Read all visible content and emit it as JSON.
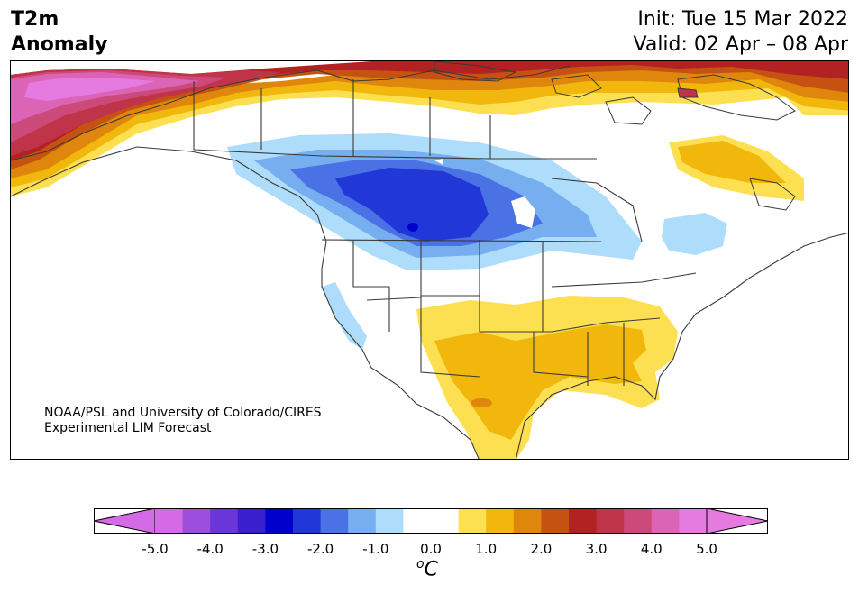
{
  "title": {
    "variable_line1": "T2m",
    "variable_line2": "Anomaly",
    "init": "Init: Tue 15 Mar 2022",
    "valid": "Valid: 02 Apr – 08 Apr"
  },
  "credit": {
    "line1": "NOAA/PSL and University of Colorado/CIRES",
    "line2": "Experimental LIM Forecast"
  },
  "colorbar": {
    "unit_base": "C",
    "unit_sup": "o",
    "ticks": [
      "-5.0",
      "-4.0",
      "-3.0",
      "-2.0",
      "-1.0",
      "0.0",
      "1.0",
      "2.0",
      "3.0",
      "4.0",
      "5.0"
    ],
    "min": -5.0,
    "max": 5.0,
    "step": 0.5,
    "colors": [
      "#d56ae6",
      "#9b4fdc",
      "#6a35d9",
      "#3a1fcf",
      "#0000cc",
      "#2237d8",
      "#4a72e4",
      "#76aef0",
      "#aedcfb",
      "#ffffff",
      "#ffffff",
      "#fde051",
      "#f1b70c",
      "#df870c",
      "#c65212",
      "#b32222",
      "#c0344a",
      "#cc4a7a",
      "#db64b6",
      "#e57ae0"
    ],
    "under_color": "#d56ae6",
    "over_color": "#e57ae0"
  }
}
